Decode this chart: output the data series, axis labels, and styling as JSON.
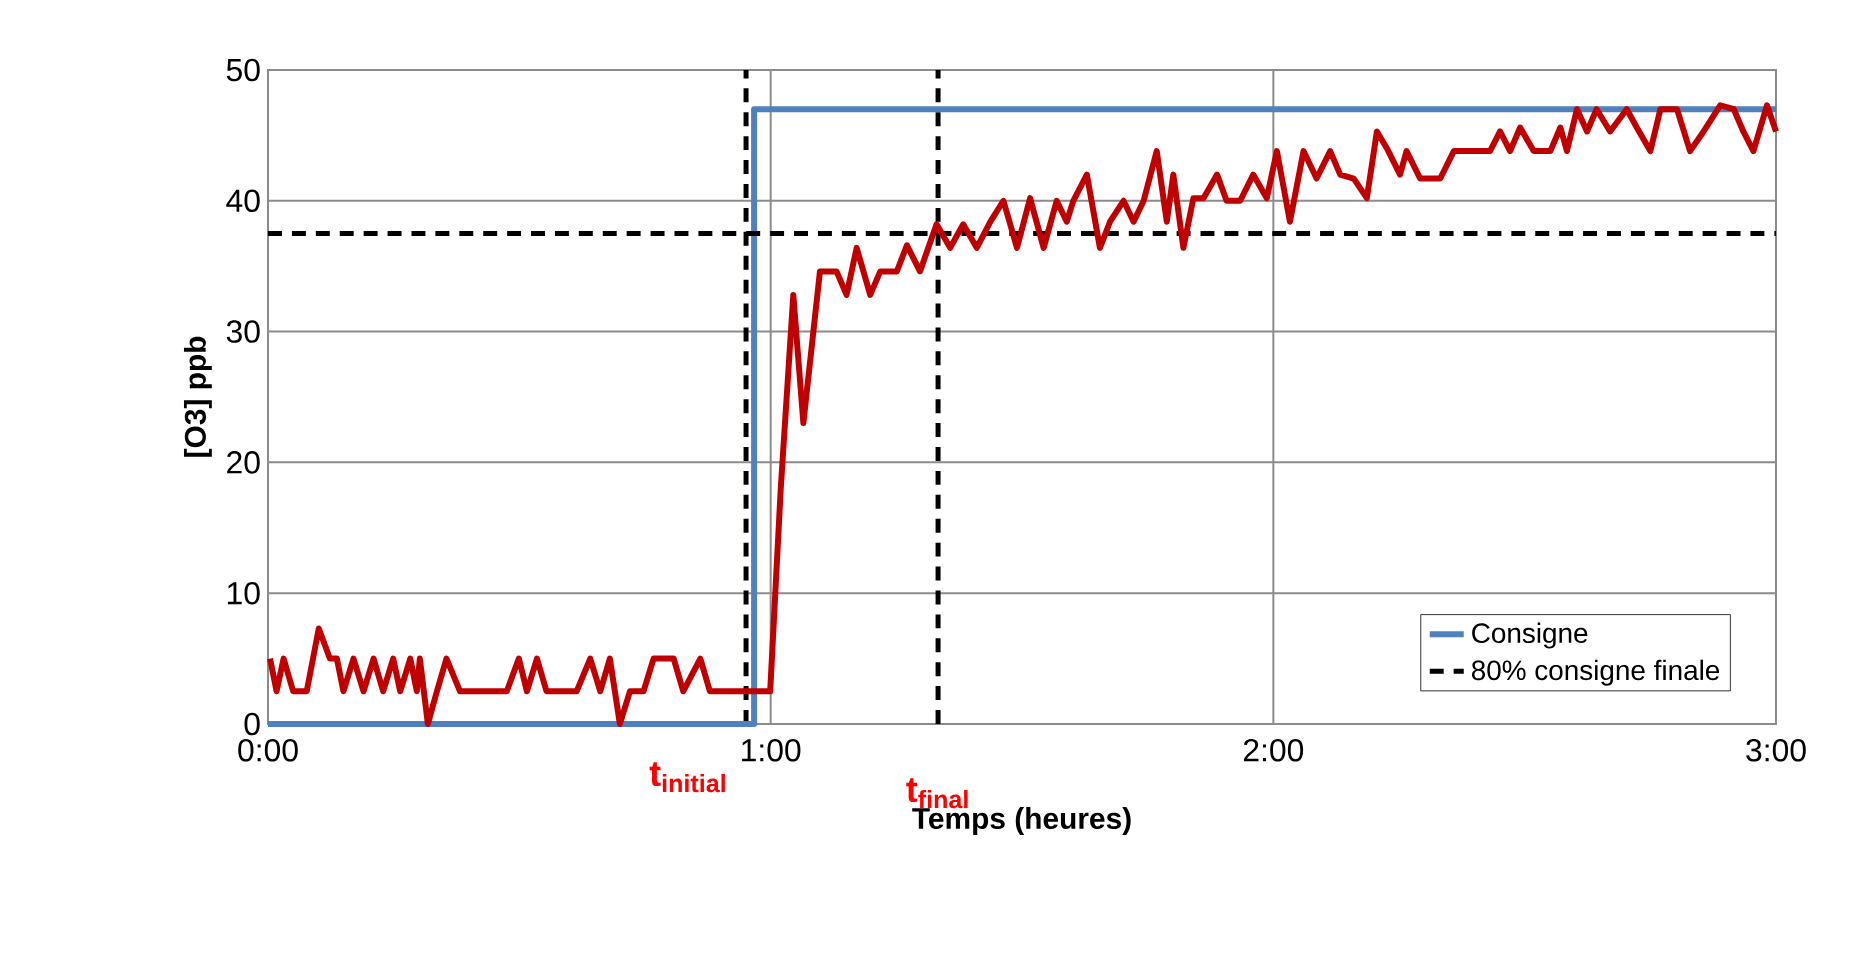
{
  "chart_data": {
    "type": "line",
    "xlabel": "Temps (heures)",
    "ylabel": "[O3] ppb",
    "xlim": [
      0,
      3
    ],
    "ylim": [
      0,
      50
    ],
    "xticks": [
      {
        "value": 0,
        "label": "0:00"
      },
      {
        "value": 1,
        "label": "1:00"
      },
      {
        "value": 2,
        "label": "2:00"
      },
      {
        "value": 3,
        "label": "3:00"
      }
    ],
    "yticks": [
      0,
      10,
      20,
      30,
      40,
      50
    ],
    "grid": true,
    "legend": "bottom right",
    "marker": "none",
    "series": [
      {
        "name": "Consigne",
        "color": "#4f81bd",
        "line_style": "solid",
        "x": [
          0,
          0.967,
          0.967,
          3
        ],
        "values": [
          0,
          0,
          47,
          47
        ]
      },
      {
        "name": "80% consigne finale",
        "color": "#000000",
        "line_style": "dashed",
        "x": [
          0,
          3
        ],
        "values": [
          37.5,
          37.5
        ]
      },
      {
        "color": "#c00000",
        "line_style": "solid",
        "x": [
          0.004,
          0.017,
          0.031,
          0.05,
          0.077,
          0.101,
          0.123,
          0.137,
          0.15,
          0.17,
          0.19,
          0.21,
          0.229,
          0.249,
          0.263,
          0.283,
          0.296,
          0.302,
          0.318,
          0.336,
          0.355,
          0.382,
          0.475,
          0.499,
          0.515,
          0.535,
          0.554,
          0.614,
          0.641,
          0.661,
          0.68,
          0.7,
          0.72,
          0.747,
          0.767,
          0.807,
          0.826,
          0.86,
          0.879,
          0.999,
          1.02,
          1.045,
          1.065,
          1.098,
          1.131,
          1.151,
          1.171,
          1.198,
          1.218,
          1.251,
          1.271,
          1.297,
          1.33,
          1.357,
          1.383,
          1.41,
          1.437,
          1.463,
          1.49,
          1.516,
          1.543,
          1.569,
          1.589,
          1.602,
          1.629,
          1.655,
          1.675,
          1.702,
          1.722,
          1.742,
          1.768,
          1.788,
          1.801,
          1.821,
          1.841,
          1.861,
          1.888,
          1.907,
          1.934,
          1.96,
          1.987,
          2.007,
          2.033,
          2.06,
          2.086,
          2.113,
          2.133,
          2.16,
          2.186,
          2.206,
          2.226,
          2.252,
          2.265,
          2.292,
          2.332,
          2.359,
          2.431,
          2.451,
          2.471,
          2.491,
          2.518,
          2.551,
          2.571,
          2.584,
          2.604,
          2.624,
          2.643,
          2.67,
          2.703,
          2.723,
          2.75,
          2.77,
          2.803,
          2.829,
          2.856,
          2.889,
          2.916,
          2.935,
          2.955,
          2.982,
          3.0
        ],
        "values": [
          5,
          2.5,
          5,
          2.5,
          2.5,
          7.3,
          5,
          5,
          2.5,
          5,
          2.5,
          5,
          2.5,
          5,
          2.5,
          5,
          2.5,
          5,
          0,
          2.5,
          5,
          2.5,
          2.5,
          5,
          2.5,
          5,
          2.5,
          2.5,
          5,
          2.5,
          5,
          0,
          2.5,
          2.5,
          5,
          5,
          2.5,
          5,
          2.5,
          2.5,
          18,
          32.8,
          23,
          34.6,
          34.6,
          32.8,
          36.4,
          32.8,
          34.6,
          34.6,
          36.6,
          34.6,
          38.2,
          36.4,
          38.2,
          36.4,
          38.4,
          40,
          36.4,
          40.2,
          36.4,
          40,
          38.4,
          40,
          42,
          36.4,
          38.4,
          40,
          38.4,
          40,
          43.8,
          38.4,
          42,
          36.4,
          40.2,
          40.2,
          42,
          40,
          40,
          42,
          40.2,
          43.8,
          38.4,
          43.8,
          41.7,
          43.8,
          42,
          41.7,
          40.2,
          45.3,
          44,
          42,
          43.8,
          41.7,
          41.7,
          43.8,
          43.8,
          45.3,
          43.8,
          45.6,
          43.8,
          43.8,
          45.6,
          43.8,
          47,
          45.3,
          47,
          45.3,
          47,
          45.6,
          43.8,
          47,
          47,
          43.8,
          45.3,
          47.3,
          47,
          45.3,
          43.8,
          47.3,
          45.3
        ]
      }
    ],
    "ref_lines": [
      {
        "axis": "x",
        "value": 0.951,
        "color": "#000000",
        "line_style": "dashed"
      },
      {
        "axis": "x",
        "value": 1.333,
        "color": "#000000",
        "line_style": "dashed"
      }
    ],
    "annotations": [
      {
        "text": "t$_{initial}$",
        "x": 0.951,
        "y": 0
      },
      {
        "text": "t$_{final}$",
        "x": 1.333,
        "y": 0
      }
    ]
  }
}
